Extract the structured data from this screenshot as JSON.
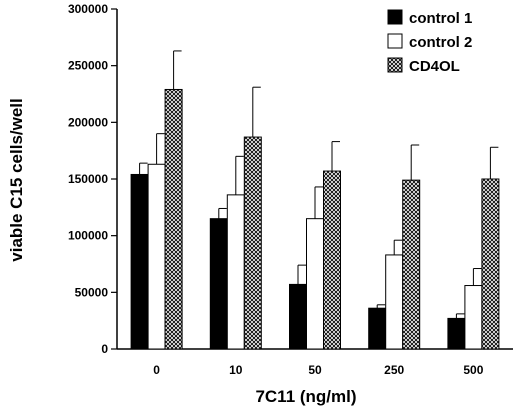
{
  "chart_data": {
    "type": "bar",
    "xlabel": "7C11 (ng/ml)",
    "ylabel": "viable C15 cells/well",
    "ylim": [
      0,
      300000
    ],
    "yticks": [
      0,
      50000,
      100000,
      150000,
      200000,
      250000,
      300000
    ],
    "grid": false,
    "legend_position": "top-right",
    "categories": [
      "0",
      "10",
      "50",
      "250",
      "500"
    ],
    "series": [
      {
        "name": "control 1",
        "fill": "solid-black",
        "values": [
          154000,
          115000,
          57000,
          36000,
          27000
        ],
        "errors": [
          10000,
          9000,
          17000,
          3000,
          4000
        ]
      },
      {
        "name": "control 2",
        "fill": "white",
        "values": [
          163000,
          136000,
          115000,
          83000,
          56000
        ],
        "errors": [
          27000,
          34000,
          28000,
          13000,
          15000
        ]
      },
      {
        "name": "CD4OL",
        "fill": "crosshatch",
        "values": [
          229000,
          187000,
          157000,
          149000,
          150000
        ],
        "errors": [
          34000,
          44000,
          26000,
          31000,
          28000
        ]
      }
    ]
  }
}
